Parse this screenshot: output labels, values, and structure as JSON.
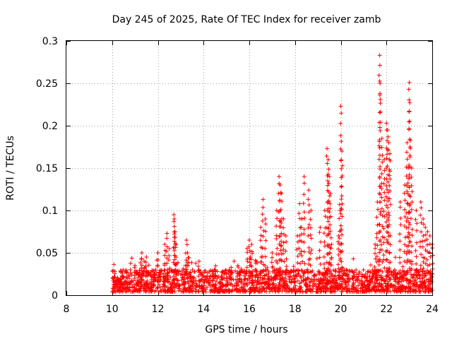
{
  "chart_data": {
    "type": "scatter",
    "title": "Day 245 of 2025, Rate Of TEC Index for receiver zamb",
    "xlabel": "GPS time / hours",
    "ylabel": "ROTI / TECUs",
    "xlim": [
      8,
      24
    ],
    "ylim": [
      0,
      0.3
    ],
    "x_ticks": [
      8,
      10,
      12,
      14,
      16,
      18,
      20,
      22,
      24
    ],
    "x_tick_labels": [
      "8",
      "10",
      "12",
      "14",
      "16",
      "18",
      "20",
      "22",
      "24"
    ],
    "y_ticks": [
      0,
      0.05,
      0.1,
      0.15,
      0.2,
      0.25,
      0.3
    ],
    "y_tick_labels": [
      "0",
      "0.05",
      "0.1",
      "0.15",
      "0.2",
      "0.25",
      "0.3"
    ],
    "grid": true,
    "marker": "+",
    "color": "#ff0000",
    "baseline": {
      "x_range": [
        10.0,
        24.0
      ],
      "typical_range": [
        0.004,
        0.03
      ]
    },
    "series": [
      {
        "name": "ROTI",
        "x": [
          10.05,
          10.1,
          10.3,
          10.5,
          10.8,
          11.0,
          11.2,
          11.3,
          11.4,
          11.5,
          11.9,
          12.0,
          12.3,
          12.4,
          12.5,
          12.7,
          12.72,
          12.75,
          12.8,
          13.2,
          13.25,
          13.3,
          13.8,
          14.5,
          15.0,
          15.5,
          15.9,
          16.0,
          16.05,
          16.1,
          16.3,
          16.5,
          16.6,
          16.7,
          17.0,
          17.2,
          17.3,
          17.35,
          17.4,
          17.5,
          17.6,
          18.1,
          18.2,
          18.3,
          18.4,
          18.6,
          18.7,
          19.1,
          19.3,
          19.4,
          19.45,
          19.5,
          19.55,
          19.6,
          19.9,
          19.95,
          20.0,
          20.05,
          21.5,
          21.6,
          21.7,
          21.72,
          21.8,
          21.9,
          22.0,
          22.05,
          22.1,
          22.15,
          22.6,
          22.8,
          22.9,
          22.95,
          23.0,
          23.02,
          23.1,
          23.3,
          23.5,
          23.6,
          23.7,
          23.8,
          23.9,
          24.0
        ],
        "y": [
          0.02,
          0.015,
          0.018,
          0.022,
          0.03,
          0.035,
          0.025,
          0.05,
          0.04,
          0.045,
          0.03,
          0.05,
          0.06,
          0.073,
          0.055,
          0.095,
          0.09,
          0.075,
          0.06,
          0.035,
          0.065,
          0.05,
          0.04,
          0.03,
          0.025,
          0.035,
          0.055,
          0.065,
          0.045,
          0.06,
          0.04,
          0.08,
          0.113,
          0.09,
          0.05,
          0.1,
          0.14,
          0.13,
          0.12,
          0.09,
          0.07,
          0.07,
          0.108,
          0.09,
          0.14,
          0.124,
          0.1,
          0.08,
          0.1,
          0.173,
          0.16,
          0.14,
          0.12,
          0.06,
          0.07,
          0.107,
          0.223,
          0.17,
          0.06,
          0.11,
          0.283,
          0.25,
          0.185,
          0.16,
          0.203,
          0.195,
          0.18,
          0.167,
          0.11,
          0.13,
          0.18,
          0.15,
          0.251,
          0.227,
          0.15,
          0.1,
          0.11,
          0.09,
          0.08,
          0.075,
          0.07,
          0.06
        ]
      }
    ]
  }
}
